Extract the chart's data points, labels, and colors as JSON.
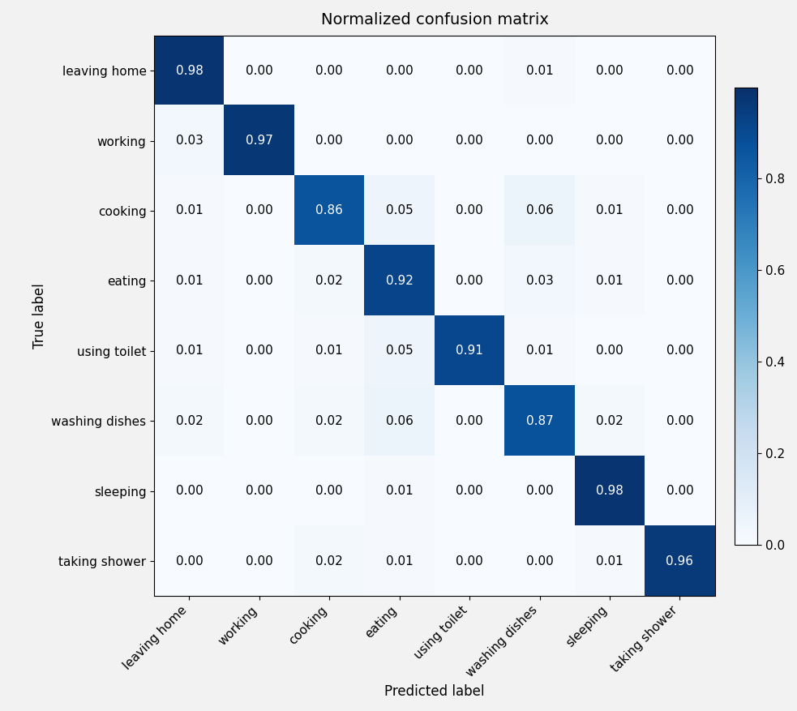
{
  "title": "Normalized confusion matrix",
  "xlabel": "Predicted label",
  "ylabel": "True label",
  "classes": [
    "leaving home",
    "working",
    "cooking",
    "eating",
    "using toilet",
    "washing dishes",
    "sleeping",
    "taking shower"
  ],
  "matrix": [
    [
      0.98,
      0.0,
      0.0,
      0.0,
      0.0,
      0.01,
      0.0,
      0.0
    ],
    [
      0.03,
      0.97,
      0.0,
      0.0,
      0.0,
      0.0,
      0.0,
      0.0
    ],
    [
      0.01,
      0.0,
      0.86,
      0.05,
      0.0,
      0.06,
      0.01,
      0.0
    ],
    [
      0.01,
      0.0,
      0.02,
      0.92,
      0.0,
      0.03,
      0.01,
      0.0
    ],
    [
      0.01,
      0.0,
      0.01,
      0.05,
      0.91,
      0.01,
      0.0,
      0.0
    ],
    [
      0.02,
      0.0,
      0.02,
      0.06,
      0.0,
      0.87,
      0.02,
      0.0
    ],
    [
      0.0,
      0.0,
      0.0,
      0.01,
      0.0,
      0.0,
      0.98,
      0.0
    ],
    [
      0.0,
      0.0,
      0.02,
      0.01,
      0.0,
      0.0,
      0.01,
      0.96
    ]
  ],
  "cmap": "Blues",
  "vmin": 0.0,
  "vmax": 1.0,
  "text_threshold": 0.5,
  "text_color_above": "white",
  "text_color_below": "black",
  "title_fontsize": 14,
  "label_fontsize": 12,
  "tick_fontsize": 11,
  "cell_fontsize": 11,
  "colorbar_ticks": [
    0.0,
    0.2,
    0.4,
    0.6,
    0.8
  ],
  "figsize": [
    9.83,
    8.77
  ],
  "bg_color": "#f0f0f0"
}
